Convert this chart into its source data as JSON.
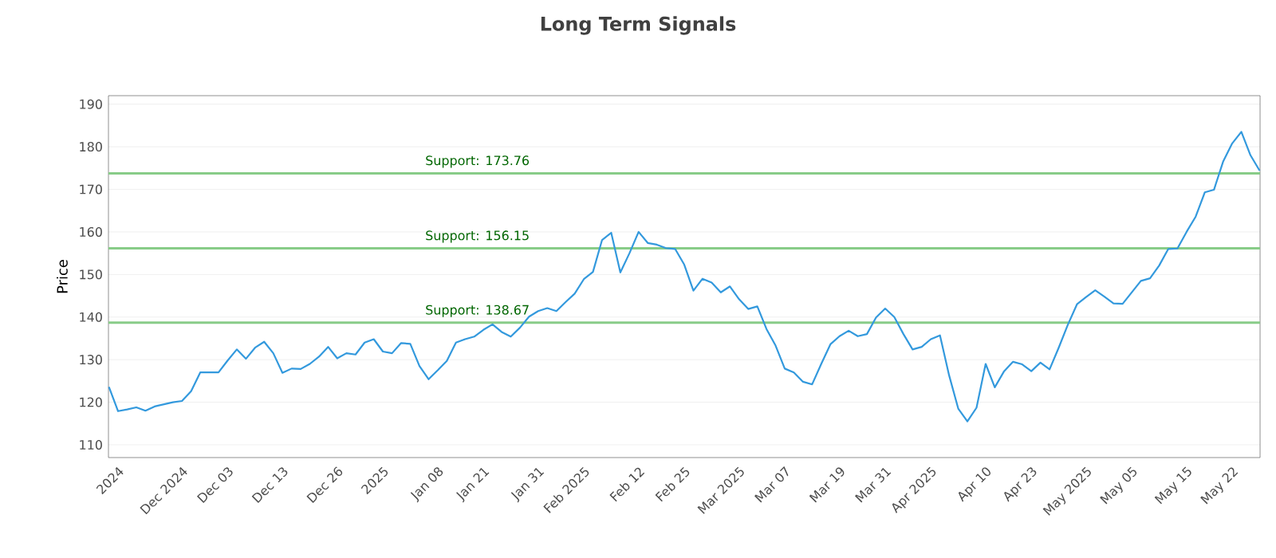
{
  "chart_data": {
    "type": "line",
    "title": "Long Term Signals",
    "ylabel": "Price",
    "categories": [
      null,
      "2024",
      null,
      null,
      null,
      null,
      null,
      null,
      "Dec 2024",
      null,
      null,
      null,
      null,
      "Dec 03",
      null,
      null,
      null,
      null,
      null,
      "Dec 13",
      null,
      null,
      null,
      null,
      null,
      "Dec 26",
      null,
      null,
      null,
      null,
      "2025",
      null,
      null,
      null,
      null,
      null,
      "Jan 08",
      null,
      null,
      null,
      null,
      "Jan 21",
      null,
      null,
      null,
      null,
      null,
      "Jan 31",
      null,
      null,
      null,
      null,
      "Feb 2025",
      null,
      null,
      null,
      null,
      null,
      "Feb 12",
      null,
      null,
      null,
      null,
      "Feb 25",
      null,
      null,
      null,
      null,
      null,
      "Mar 2025",
      null,
      null,
      null,
      null,
      "Mar 07",
      null,
      null,
      null,
      null,
      null,
      "Mar 19",
      null,
      null,
      null,
      null,
      "Mar 31",
      null,
      null,
      null,
      null,
      "Apr 2025",
      null,
      null,
      null,
      null,
      null,
      "Apr 10",
      null,
      null,
      null,
      null,
      "Apr 23",
      null,
      null,
      null,
      null,
      null,
      "May 2025",
      null,
      null,
      null,
      null,
      "May 05",
      null,
      null,
      null,
      null,
      null,
      "May 15",
      null,
      null,
      null,
      null,
      "May 22",
      null,
      null,
      null
    ],
    "series": [
      {
        "color": "#3399dd",
        "values": [
          123.6,
          117.9,
          118.3,
          118.8,
          118,
          119,
          119.5,
          120,
          120.3,
          122.6,
          127,
          127,
          127,
          129.8,
          132.4,
          130.2,
          132.8,
          134.2,
          131.5,
          126.9,
          127.9,
          127.8,
          129,
          130.7,
          133,
          130.3,
          131.5,
          131.2,
          134,
          134.8,
          131.9,
          131.5,
          133.9,
          133.7,
          128.5,
          125.4,
          127.5,
          129.7,
          134,
          134.8,
          135.4,
          137,
          138.3,
          136.5,
          135.4,
          137.5,
          140.1,
          141.4,
          142.1,
          141.4,
          143.5,
          145.5,
          148.9,
          150.6,
          158.1,
          159.8,
          150.5,
          155,
          160,
          157.4,
          157,
          156.2,
          156,
          152.3,
          146.2,
          149,
          148.1,
          145.8,
          147.2,
          144.2,
          141.9,
          142.5,
          137.2,
          133.3,
          127.9,
          127,
          124.8,
          124.2,
          129,
          133.6,
          135.5,
          136.8,
          135.5,
          136,
          139.9,
          142,
          140,
          136,
          132.4,
          133,
          134.8,
          135.7,
          126.3,
          118.5,
          115.5,
          118.7,
          129,
          123.5,
          127.2,
          129.5,
          128.9,
          127.3,
          129.3,
          127.7,
          132.8,
          138.2,
          143,
          144.7,
          146.3,
          144.8,
          143.2,
          143.1,
          145.8,
          148.5,
          149.1,
          152.1,
          156,
          156.1,
          160,
          163.6,
          169.3,
          169.9,
          176.5,
          180.8,
          183.5,
          178,
          174.4
        ]
      }
    ],
    "ylim": [
      107,
      192
    ],
    "yticks": [
      110,
      120,
      130,
      140,
      150,
      160,
      170,
      180,
      190
    ],
    "ref_lines": [
      {
        "axis": "y",
        "value": 173.76,
        "label": "Support: 173.76",
        "color": "#88cc88"
      },
      {
        "axis": "y",
        "value": 156.15,
        "label": "Support: 156.15",
        "color": "#88cc88"
      },
      {
        "axis": "y",
        "value": 138.67,
        "label": "Support: 138.67",
        "color": "#88cc88"
      }
    ],
    "grid": "y",
    "marker": "none",
    "line_style": "solid"
  }
}
